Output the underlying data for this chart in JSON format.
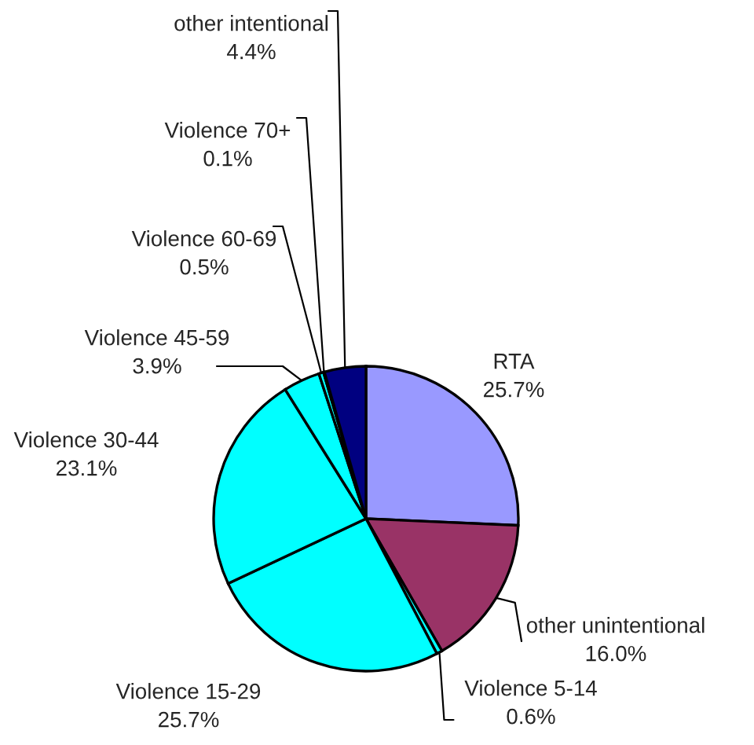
{
  "chart_data": {
    "type": "pie",
    "categories": [
      "RTA",
      "other unintentional",
      "Violence 5-14",
      "Violence 15-29",
      "Violence 30-44",
      "Violence 45-59",
      "Violence 60-69",
      "Violence 70+",
      "other intentional"
    ],
    "values": [
      25.7,
      16.0,
      0.6,
      25.7,
      23.1,
      3.9,
      0.5,
      0.1,
      4.4
    ],
    "value_labels": [
      "25.7%",
      "16.0%",
      "0.6%",
      "25.7%",
      "23.1%",
      "3.9%",
      "0.5%",
      "0.1%",
      "4.4%"
    ],
    "colors": [
      "#9999ff",
      "#993366",
      "#00ffff",
      "#00ffff",
      "#00ffff",
      "#00ffff",
      "#00ffff",
      "#00ffff",
      "#000080"
    ],
    "legend": false
  }
}
